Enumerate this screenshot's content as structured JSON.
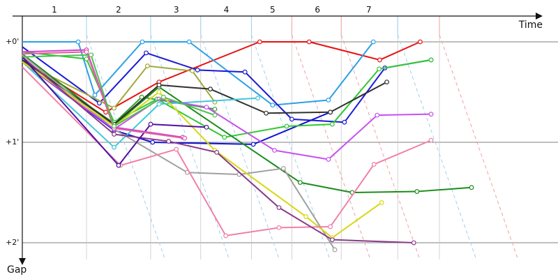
{
  "chart_data": {
    "type": "line",
    "xlabel": "Time",
    "ylabel": "Gap",
    "laps": [
      "1",
      "2",
      "3",
      "4",
      "5",
      "6",
      "7"
    ],
    "y_ticks": [
      {
        "value": 0,
        "label": "+0'"
      },
      {
        "value": 1,
        "label": "+1'"
      },
      {
        "value": 2,
        "label": "+2'"
      }
    ],
    "xlim": [
      0,
      7.75
    ],
    "ylim": [
      -0.4,
      2.12
    ],
    "grid": true,
    "lap_boundaries": [
      {
        "x": 1.0,
        "color": "#9ed0f0"
      },
      {
        "x": 2.0,
        "color": "#9ed0f0"
      },
      {
        "x": 2.78,
        "color": "#9ed0f0"
      },
      {
        "x": 3.57,
        "color": "#9ed0f0"
      },
      {
        "x": 4.2,
        "color": "#f4a0a0"
      },
      {
        "x": 4.97,
        "color": "#f4a0a0"
      },
      {
        "x": 5.85,
        "color": "#9ed0f0"
      },
      {
        "x": 6.5,
        "color": "#f4a0a0"
      }
    ],
    "series": [
      {
        "color": "#e81010",
        "points": [
          [
            0,
            0.18
          ],
          [
            1.3,
            0.7
          ],
          [
            2.13,
            0.4
          ],
          [
            3.7,
            0
          ],
          [
            4.47,
            0
          ],
          [
            5.57,
            0.18
          ],
          [
            6.2,
            0
          ]
        ]
      },
      {
        "color": "#2aa0e8",
        "points": [
          [
            0,
            0
          ],
          [
            0.87,
            0
          ],
          [
            1.13,
            0.53
          ],
          [
            1.87,
            0
          ],
          [
            2.6,
            0
          ],
          [
            3.9,
            0.63
          ],
          [
            4.77,
            0.58
          ],
          [
            5.47,
            0
          ]
        ]
      },
      {
        "color": "#1a1ad6",
        "points": [
          [
            0,
            0.05
          ],
          [
            1.2,
            0.61
          ],
          [
            1.93,
            0.11
          ],
          [
            2.73,
            0.28
          ],
          [
            3.47,
            0.3
          ],
          [
            4.2,
            0.77
          ],
          [
            5.02,
            0.8
          ],
          [
            5.65,
            0.26
          ],
          [
            6.37,
            0.18
          ]
        ]
      },
      {
        "color": "#1010d0",
        "points": [
          [
            0,
            0.2
          ],
          [
            1.43,
            0.88
          ],
          [
            2.03,
            1.0
          ],
          [
            3.6,
            1.02
          ],
          [
            4.8,
            0.7
          ]
        ]
      },
      {
        "color": "#a0a838",
        "points": [
          [
            0,
            0.2
          ],
          [
            1.43,
            0.66
          ],
          [
            1.95,
            0.24
          ],
          [
            2.65,
            0.29
          ],
          [
            3.0,
            0.6
          ]
        ]
      },
      {
        "color": "#30a030",
        "points": [
          [
            0,
            0.18
          ],
          [
            1.43,
            0.81
          ],
          [
            1.86,
            0.55
          ],
          [
            3.0,
            0.67
          ]
        ]
      },
      {
        "color": "#30c830",
        "points": [
          [
            0,
            0.1
          ],
          [
            1.0,
            0.17
          ],
          [
            1.43,
            0.8
          ],
          [
            2.1,
            0.57
          ],
          [
            3.15,
            0.95
          ],
          [
            4.12,
            0.84
          ],
          [
            4.83,
            0.82
          ],
          [
            5.56,
            0.27
          ],
          [
            6.37,
            0.18
          ]
        ]
      },
      {
        "color": "#1c8c1c",
        "points": [
          [
            0,
            0.12
          ],
          [
            1.43,
            0.83
          ],
          [
            2.13,
            0.45
          ],
          [
            4.33,
            1.4
          ],
          [
            5.14,
            1.5
          ],
          [
            6.15,
            1.49
          ],
          [
            7.0,
            1.45
          ]
        ]
      },
      {
        "color": "#303030",
        "points": [
          [
            0,
            0.18
          ],
          [
            1.43,
            0.82
          ],
          [
            2.13,
            0.43
          ],
          [
            2.93,
            0.47
          ],
          [
            3.8,
            0.71
          ],
          [
            4.8,
            0.7
          ],
          [
            5.68,
            0.4
          ]
        ]
      },
      {
        "color": "#a0a0a0",
        "points": [
          [
            0,
            0.13
          ],
          [
            1.43,
            0.87
          ],
          [
            2.57,
            1.3
          ],
          [
            3.38,
            1.32
          ],
          [
            4.07,
            1.26
          ],
          [
            4.87,
            2.07
          ]
        ]
      },
      {
        "color": "#40c8d8",
        "points": [
          [
            0,
            0.2
          ],
          [
            1.43,
            1.05
          ],
          [
            2.13,
            0.62
          ],
          [
            3.67,
            0.56
          ]
        ]
      },
      {
        "color": "#c850f0",
        "points": [
          [
            0,
            0.2
          ],
          [
            1.43,
            0.87
          ],
          [
            2.13,
            0.57
          ],
          [
            2.87,
            0.65
          ],
          [
            3.93,
            1.08
          ],
          [
            4.77,
            1.17
          ],
          [
            5.53,
            0.73
          ],
          [
            6.37,
            0.72
          ]
        ]
      },
      {
        "color": "#d8d810",
        "points": [
          [
            0,
            0.2
          ],
          [
            1.43,
            0.84
          ],
          [
            2.13,
            0.5
          ],
          [
            3.0,
            1.08
          ],
          [
            4.42,
            1.74
          ],
          [
            4.83,
            1.95
          ],
          [
            5.6,
            1.6
          ]
        ]
      },
      {
        "color": "#f080a8",
        "points": [
          [
            0,
            0.25
          ],
          [
            1.53,
            1.23
          ],
          [
            2.4,
            1.07
          ],
          [
            3.17,
            1.93
          ],
          [
            4.0,
            1.85
          ],
          [
            4.8,
            1.84
          ],
          [
            5.48,
            1.22
          ],
          [
            6.37,
            0.98
          ]
        ]
      },
      {
        "color": "#8a3a88",
        "points": [
          [
            0,
            0.15
          ],
          [
            1.43,
            0.92
          ],
          [
            2.28,
            0.99
          ],
          [
            3.03,
            1.1
          ],
          [
            4.0,
            1.65
          ],
          [
            4.83,
            1.97
          ],
          [
            6.1,
            2.0
          ]
        ]
      },
      {
        "color": "#5010a0",
        "points": [
          [
            0,
            0.15
          ],
          [
            1.5,
            1.23
          ],
          [
            2.0,
            0.82
          ],
          [
            2.87,
            0.85
          ]
        ]
      },
      {
        "color": "#d040d0",
        "points": [
          [
            0,
            0.1
          ],
          [
            1.0,
            0.08
          ],
          [
            1.43,
            0.85
          ],
          [
            2.5,
            0.95
          ]
        ]
      },
      {
        "color": "#e060a0",
        "points": [
          [
            0,
            0.12
          ],
          [
            1.0,
            0.1
          ],
          [
            1.43,
            0.86
          ],
          [
            2.53,
            0.96
          ]
        ]
      },
      {
        "color": "#50c050",
        "points": [
          [
            0,
            0.15
          ],
          [
            1.07,
            0.13
          ],
          [
            1.43,
            0.84
          ],
          [
            2.2,
            0.55
          ],
          [
            3.0,
            0.73
          ]
        ]
      }
    ]
  }
}
